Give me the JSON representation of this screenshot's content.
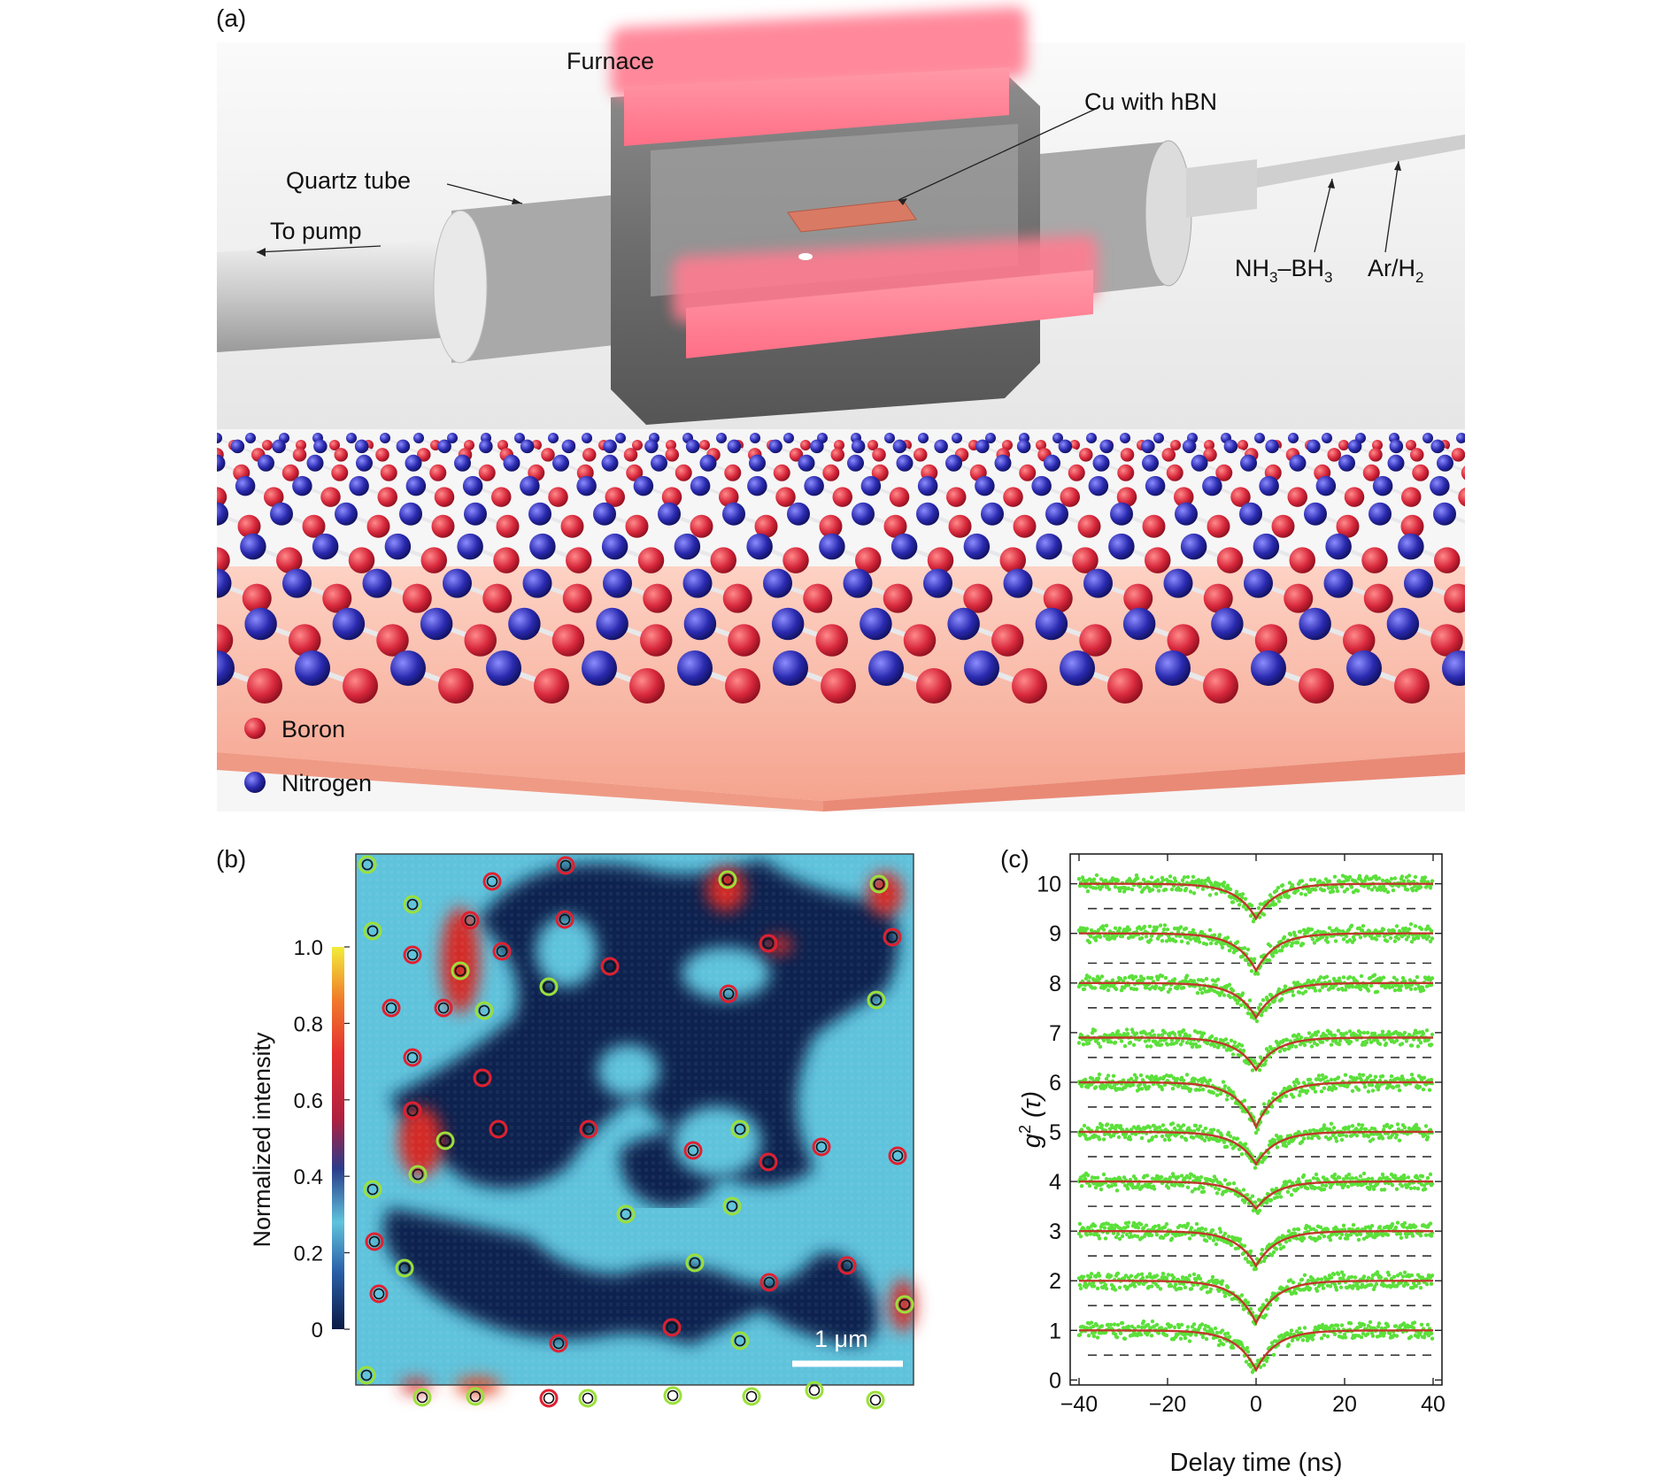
{
  "panel_a": {
    "letter": "(a)",
    "labels": {
      "furnace": "Furnace",
      "cu_hbn": "Cu with hBN",
      "quartz_tube": "Quartz tube",
      "to_pump": "To pump",
      "precursor_base": "NH",
      "precursor_sub1": "3",
      "precursor_mid": "–BH",
      "precursor_sub2": "3",
      "carrier_base": "Ar/H",
      "carrier_sub": "2"
    },
    "legend": [
      {
        "label": "Boron",
        "color": "#d8283c"
      },
      {
        "label": "Nitrogen",
        "color": "#2a2ab0"
      }
    ]
  },
  "panel_b": {
    "letter": "(b)",
    "colorbar_label": "Normalized intensity",
    "colorbar_ticks": [
      "0",
      "0.2",
      "0.4",
      "0.6",
      "0.8",
      "1.0"
    ],
    "scalebar_label": "1 μm",
    "colors": {
      "background": "#5fc3dc",
      "dark": "#0e2150",
      "hot": "#d42a28",
      "green_marker": "#9be03a",
      "red_marker": "#e02030"
    }
  },
  "panel_c": {
    "letter": "(c)",
    "chart_data": {
      "type": "scatter",
      "title": "",
      "xlabel": "Delay time (ns)",
      "ylabel": "g²(τ)",
      "ylabel_base": "g",
      "ylabel_sup": "2",
      "ylabel_arg": " (τ)",
      "xlim": [
        -42,
        42
      ],
      "ylim": [
        -0.1,
        10.6
      ],
      "xticks": [
        "−40",
        "−20",
        "0",
        "20",
        "40"
      ],
      "yticks": [
        "0",
        "1",
        "2",
        "3",
        "4",
        "5",
        "6",
        "7",
        "8",
        "9",
        "10"
      ],
      "series": [
        {
          "offset": 0,
          "baseline": 1.0,
          "dip_min": 0.2,
          "dashed_zero": 0.5
        },
        {
          "offset": 1,
          "baseline": 2.0,
          "dip_min": 1.15,
          "dashed_zero": 1.5
        },
        {
          "offset": 2,
          "baseline": 3.0,
          "dip_min": 2.3,
          "dashed_zero": 2.5
        },
        {
          "offset": 3,
          "baseline": 4.0,
          "dip_min": 3.45,
          "dashed_zero": 3.5
        },
        {
          "offset": 4,
          "baseline": 5.0,
          "dip_min": 4.35,
          "dashed_zero": 4.5
        },
        {
          "offset": 5,
          "baseline": 6.0,
          "dip_min": 5.1,
          "dashed_zero": 5.5
        },
        {
          "offset": 6,
          "baseline": 6.9,
          "dip_min": 6.25,
          "dashed_zero": 6.5
        },
        {
          "offset": 7,
          "baseline": 8.0,
          "dip_min": 7.3,
          "dashed_zero": 7.5
        },
        {
          "offset": 8,
          "baseline": 9.0,
          "dip_min": 8.25,
          "dashed_zero": 8.4
        },
        {
          "offset": 9,
          "baseline": 10.0,
          "dip_min": 9.3,
          "dashed_zero": 9.5
        }
      ],
      "fit_color": "#c0392b",
      "point_color": "#5be03a",
      "decay_time_ns": 4.5,
      "grid": false
    }
  }
}
